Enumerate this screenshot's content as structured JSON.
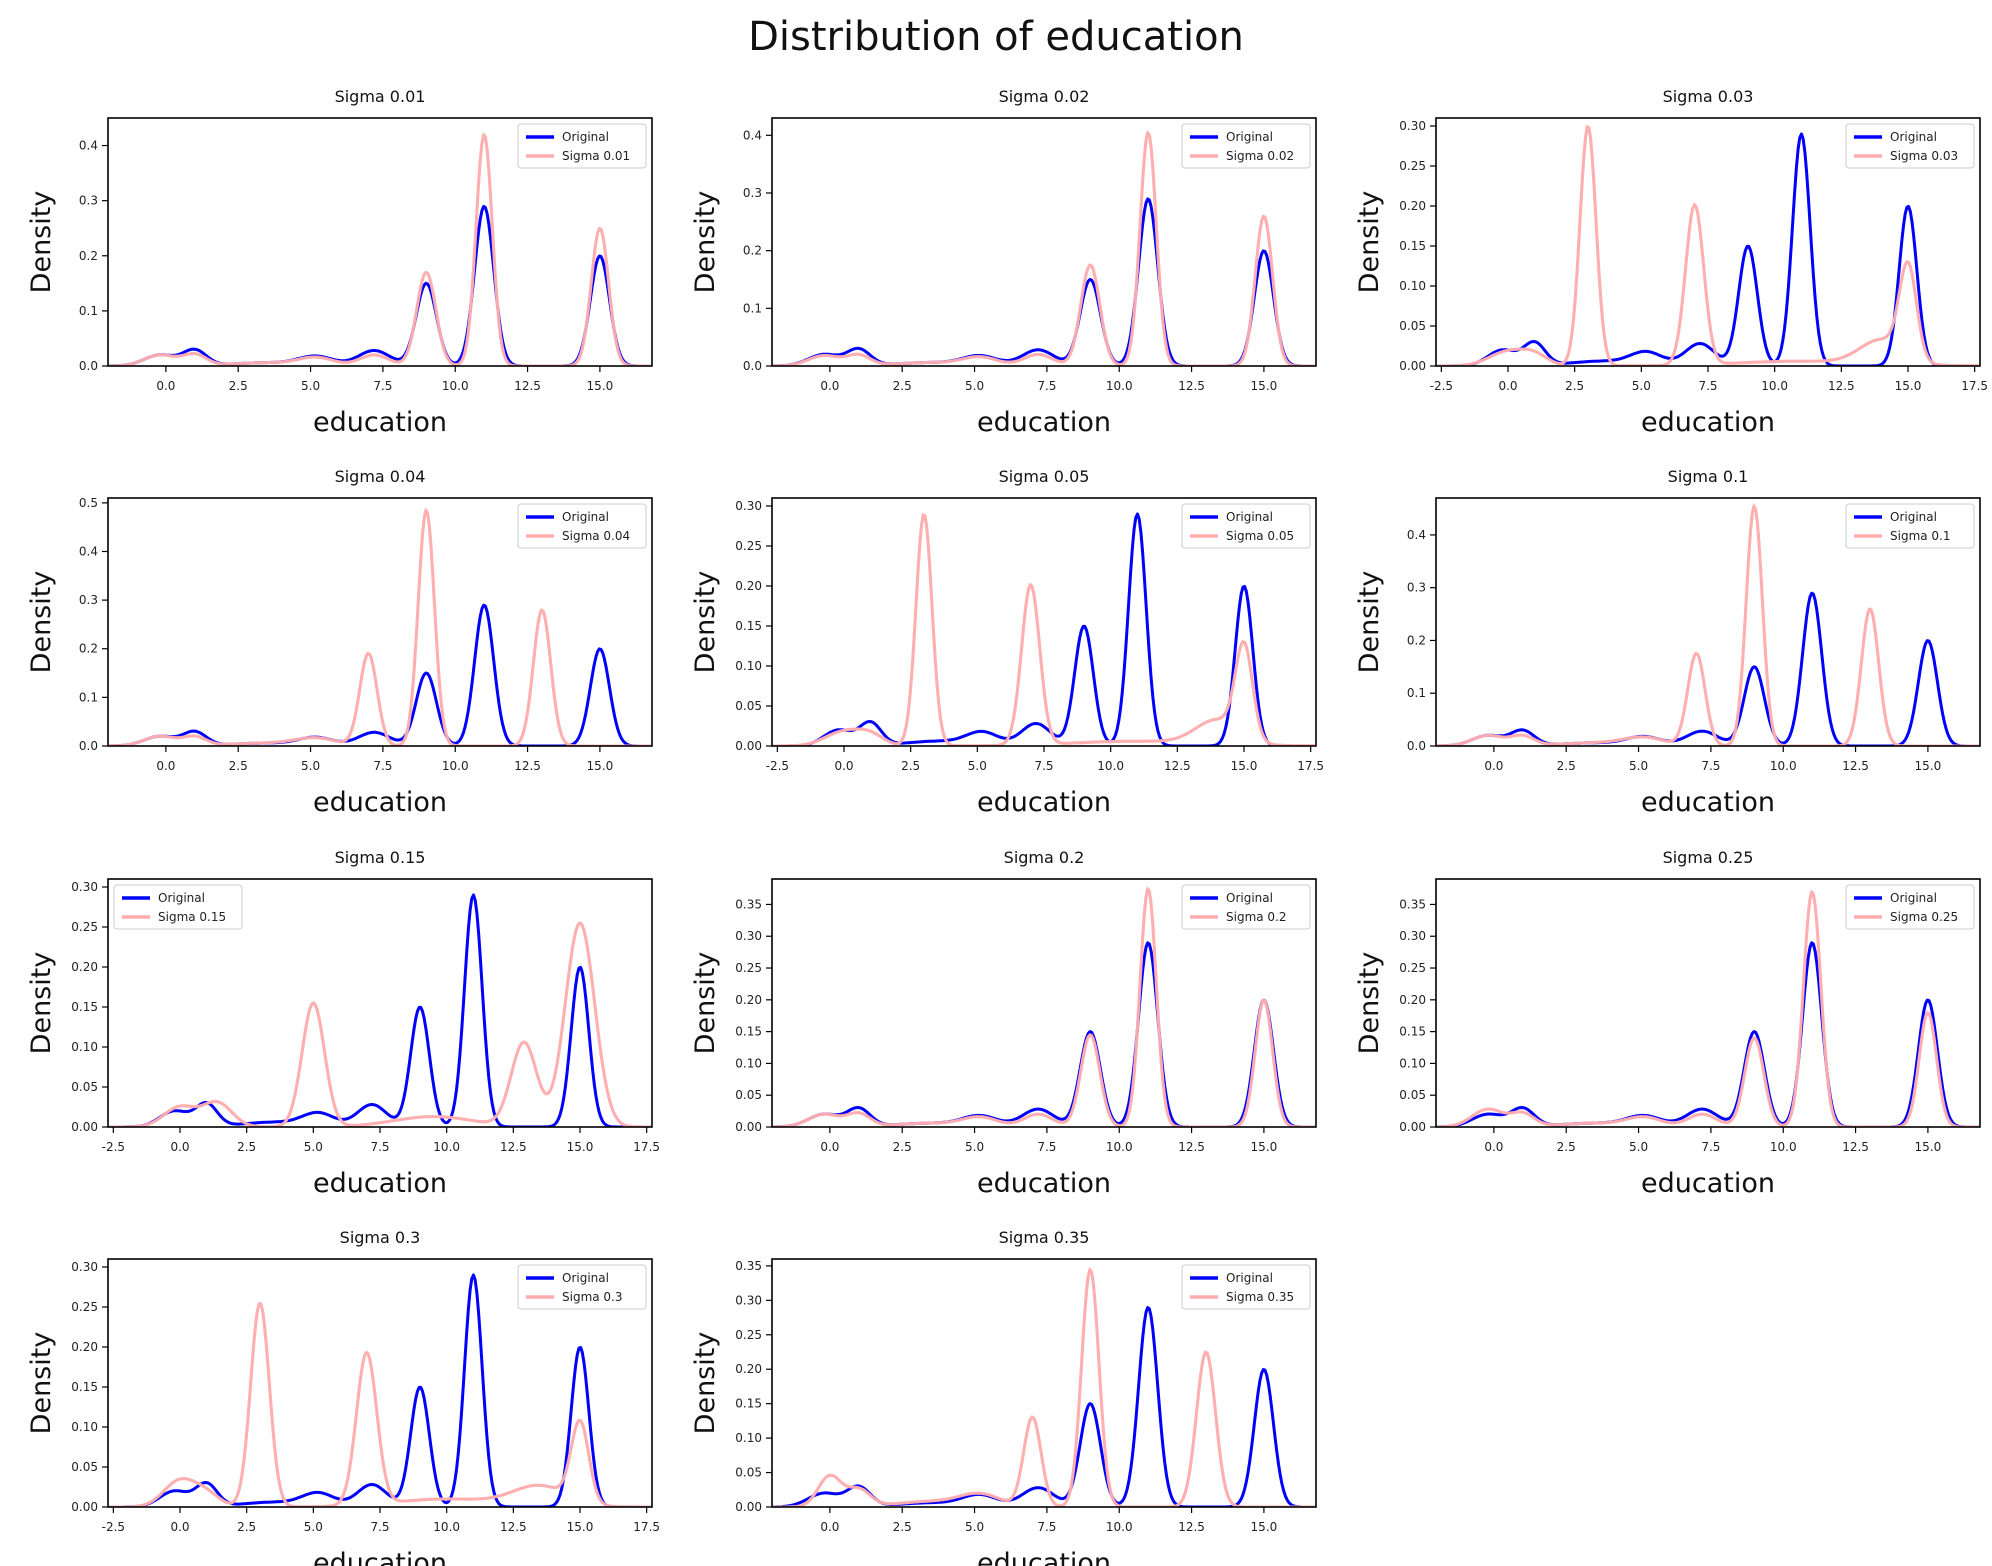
{
  "figure": {
    "title": "Distribution of education"
  },
  "chart_data": [
    {
      "type": "line",
      "title": "Sigma 0.01",
      "xlabel": "education",
      "ylabel": "Density",
      "xlim": [
        -2.0,
        16.8
      ],
      "ylim": [
        0,
        0.45
      ],
      "xticks": [
        "0.0",
        "2.5",
        "5.0",
        "7.5",
        "10.0",
        "12.5",
        "15.0"
      ],
      "yticks": [
        "0.0",
        "0.1",
        "0.2",
        "0.3",
        "0.4"
      ],
      "legend": "top-right",
      "series": [
        {
          "name": "Original",
          "color": "#0000ff",
          "profile": "original"
        },
        {
          "name": "Sigma 0.01",
          "color": "#ffadad",
          "components": [
            [
              -0.2,
              0.02,
              0.55
            ],
            [
              1.0,
              0.02,
              0.4
            ],
            [
              3.5,
              0.006,
              1.2
            ],
            [
              5.2,
              0.014,
              0.6
            ],
            [
              7.2,
              0.02,
              0.5
            ],
            [
              9.0,
              0.17,
              0.33
            ],
            [
              11.0,
              0.42,
              0.28
            ],
            [
              15.0,
              0.25,
              0.3
            ]
          ]
        }
      ]
    },
    {
      "type": "line",
      "title": "Sigma 0.02",
      "xlabel": "education",
      "ylabel": "Density",
      "xlim": [
        -2.0,
        16.8
      ],
      "ylim": [
        0,
        0.43
      ],
      "xticks": [
        "0.0",
        "2.5",
        "5.0",
        "7.5",
        "10.0",
        "12.5",
        "15.0"
      ],
      "yticks": [
        "0.0",
        "0.1",
        "0.2",
        "0.3",
        "0.4"
      ],
      "legend": "top-right",
      "series": [
        {
          "name": "Original",
          "color": "#0000ff",
          "profile": "original"
        },
        {
          "name": "Sigma 0.02",
          "color": "#ffadad",
          "components": [
            [
              -0.2,
              0.018,
              0.55
            ],
            [
              1.0,
              0.018,
              0.4
            ],
            [
              3.5,
              0.006,
              1.2
            ],
            [
              5.2,
              0.014,
              0.6
            ],
            [
              7.2,
              0.02,
              0.5
            ],
            [
              9.0,
              0.175,
              0.33
            ],
            [
              11.0,
              0.405,
              0.28
            ],
            [
              15.0,
              0.26,
              0.3
            ]
          ]
        }
      ]
    },
    {
      "type": "line",
      "title": "Sigma 0.03",
      "xlabel": "education",
      "ylabel": "Density",
      "xlim": [
        -2.7,
        17.7
      ],
      "ylim": [
        0,
        0.31
      ],
      "xticks": [
        "-2.5",
        "0.0",
        "2.5",
        "5.0",
        "7.5",
        "10.0",
        "12.5",
        "15.0",
        "17.5"
      ],
      "yticks": [
        "0.00",
        "0.05",
        "0.10",
        "0.15",
        "0.20",
        "0.25",
        "0.30"
      ],
      "legend": "top-right",
      "series": [
        {
          "name": "Original",
          "color": "#0000ff",
          "profile": "original"
        },
        {
          "name": "Sigma 0.03",
          "color": "#ffadad",
          "components": [
            [
              0.0,
              0.018,
              0.7
            ],
            [
              1.0,
              0.012,
              0.5
            ],
            [
              3.0,
              0.3,
              0.3
            ],
            [
              7.0,
              0.2,
              0.34
            ],
            [
              11.0,
              0.006,
              2.5
            ],
            [
              14.0,
              0.03,
              0.8
            ],
            [
              15.0,
              0.115,
              0.32
            ]
          ]
        }
      ]
    },
    {
      "type": "line",
      "title": "Sigma 0.04",
      "xlabel": "education",
      "ylabel": "Density",
      "xlim": [
        -2.0,
        16.8
      ],
      "ylim": [
        0,
        0.51
      ],
      "xticks": [
        "0.0",
        "2.5",
        "5.0",
        "7.5",
        "10.0",
        "12.5",
        "15.0"
      ],
      "yticks": [
        "0.0",
        "0.1",
        "0.2",
        "0.3",
        "0.4",
        "0.5"
      ],
      "legend": "top-right",
      "series": [
        {
          "name": "Original",
          "color": "#0000ff",
          "profile": "original"
        },
        {
          "name": "Sigma 0.04",
          "color": "#ffadad",
          "components": [
            [
              -0.2,
              0.02,
              0.55
            ],
            [
              1.0,
              0.018,
              0.4
            ],
            [
              3.5,
              0.006,
              1.2
            ],
            [
              5.2,
              0.015,
              0.7
            ],
            [
              7.0,
              0.19,
              0.3
            ],
            [
              9.0,
              0.485,
              0.28
            ],
            [
              13.0,
              0.28,
              0.3
            ]
          ]
        }
      ]
    },
    {
      "type": "line",
      "title": "Sigma 0.05",
      "xlabel": "education",
      "ylabel": "Density",
      "xlim": [
        -2.7,
        17.7
      ],
      "ylim": [
        0,
        0.31
      ],
      "xticks": [
        "-2.5",
        "0.0",
        "2.5",
        "5.0",
        "7.5",
        "10.0",
        "12.5",
        "15.0",
        "17.5"
      ],
      "yticks": [
        "0.00",
        "0.05",
        "0.10",
        "0.15",
        "0.20",
        "0.25",
        "0.30"
      ],
      "legend": "top-right",
      "series": [
        {
          "name": "Original",
          "color": "#0000ff",
          "profile": "original"
        },
        {
          "name": "Sigma 0.05",
          "color": "#ffadad",
          "components": [
            [
              0.0,
              0.018,
              0.7
            ],
            [
              1.0,
              0.012,
              0.5
            ],
            [
              3.0,
              0.29,
              0.3
            ],
            [
              7.0,
              0.2,
              0.34
            ],
            [
              11.0,
              0.006,
              2.5
            ],
            [
              14.0,
              0.03,
              0.8
            ],
            [
              15.0,
              0.115,
              0.32
            ]
          ]
        }
      ]
    },
    {
      "type": "line",
      "title": "Sigma 0.1",
      "xlabel": "education",
      "ylabel": "Density",
      "xlim": [
        -2.0,
        16.8
      ],
      "ylim": [
        0,
        0.47
      ],
      "xticks": [
        "0.0",
        "2.5",
        "5.0",
        "7.5",
        "10.0",
        "12.5",
        "15.0"
      ],
      "yticks": [
        "0.0",
        "0.1",
        "0.2",
        "0.3",
        "0.4"
      ],
      "legend": "top-right",
      "series": [
        {
          "name": "Original",
          "color": "#0000ff",
          "profile": "original"
        },
        {
          "name": "Sigma 0.1",
          "color": "#ffadad",
          "components": [
            [
              -0.2,
              0.02,
              0.55
            ],
            [
              1.0,
              0.018,
              0.4
            ],
            [
              3.5,
              0.006,
              1.2
            ],
            [
              5.2,
              0.015,
              0.7
            ],
            [
              7.0,
              0.175,
              0.3
            ],
            [
              9.0,
              0.455,
              0.28
            ],
            [
              13.0,
              0.26,
              0.3
            ]
          ]
        }
      ]
    },
    {
      "type": "line",
      "title": "Sigma 0.15",
      "xlabel": "education",
      "ylabel": "Density",
      "xlim": [
        -2.7,
        17.7
      ],
      "ylim": [
        0,
        0.31
      ],
      "xticks": [
        "-2.5",
        "0.0",
        "2.5",
        "5.0",
        "7.5",
        "10.0",
        "12.5",
        "15.0",
        "17.5"
      ],
      "yticks": [
        "0.00",
        "0.05",
        "0.10",
        "0.15",
        "0.20",
        "0.25",
        "0.30"
      ],
      "legend": "top-left",
      "series": [
        {
          "name": "Original",
          "color": "#0000ff",
          "profile": "original"
        },
        {
          "name": "Sigma 0.15",
          "color": "#ffadad",
          "components": [
            [
              0.0,
              0.025,
              0.6
            ],
            [
              1.4,
              0.03,
              0.55
            ],
            [
              5.0,
              0.155,
              0.42
            ],
            [
              9.5,
              0.013,
              1.5
            ],
            [
              12.9,
              0.105,
              0.48
            ],
            [
              15.0,
              0.255,
              0.55
            ]
          ]
        }
      ]
    },
    {
      "type": "line",
      "title": "Sigma 0.2",
      "xlabel": "education",
      "ylabel": "Density",
      "xlim": [
        -2.0,
        16.8
      ],
      "ylim": [
        0,
        0.39
      ],
      "xticks": [
        "0.0",
        "2.5",
        "5.0",
        "7.5",
        "10.0",
        "12.5",
        "15.0"
      ],
      "yticks": [
        "0.00",
        "0.05",
        "0.10",
        "0.15",
        "0.20",
        "0.25",
        "0.30",
        "0.35"
      ],
      "legend": "top-right",
      "series": [
        {
          "name": "Original",
          "color": "#0000ff",
          "profile": "original"
        },
        {
          "name": "Sigma 0.2",
          "color": "#ffadad",
          "components": [
            [
              -0.2,
              0.02,
              0.55
            ],
            [
              1.0,
              0.02,
              0.4
            ],
            [
              3.5,
              0.006,
              1.2
            ],
            [
              5.2,
              0.014,
              0.6
            ],
            [
              7.2,
              0.02,
              0.5
            ],
            [
              9.0,
              0.145,
              0.33
            ],
            [
              11.0,
              0.375,
              0.28
            ],
            [
              15.0,
              0.2,
              0.3
            ]
          ]
        }
      ]
    },
    {
      "type": "line",
      "title": "Sigma 0.25",
      "xlabel": "education",
      "ylabel": "Density",
      "xlim": [
        -2.0,
        16.8
      ],
      "ylim": [
        0,
        0.39
      ],
      "xticks": [
        "0.0",
        "2.5",
        "5.0",
        "7.5",
        "10.0",
        "12.5",
        "15.0"
      ],
      "yticks": [
        "0.00",
        "0.05",
        "0.10",
        "0.15",
        "0.20",
        "0.25",
        "0.30",
        "0.35"
      ],
      "legend": "top-right",
      "series": [
        {
          "name": "Original",
          "color": "#0000ff",
          "profile": "original"
        },
        {
          "name": "Sigma 0.25",
          "color": "#ffadad",
          "components": [
            [
              -0.2,
              0.028,
              0.55
            ],
            [
              1.0,
              0.02,
              0.4
            ],
            [
              3.5,
              0.006,
              1.2
            ],
            [
              5.2,
              0.014,
              0.6
            ],
            [
              7.2,
              0.02,
              0.5
            ],
            [
              9.0,
              0.14,
              0.33
            ],
            [
              11.0,
              0.37,
              0.3
            ],
            [
              15.0,
              0.18,
              0.3
            ]
          ]
        }
      ]
    },
    {
      "type": "line",
      "title": "Sigma 0.3",
      "xlabel": "education",
      "ylabel": "Density",
      "xlim": [
        -2.7,
        17.7
      ],
      "ylim": [
        0,
        0.31
      ],
      "xticks": [
        "-2.5",
        "0.0",
        "2.5",
        "5.0",
        "7.5",
        "10.0",
        "12.5",
        "15.0",
        "17.5"
      ],
      "yticks": [
        "0.00",
        "0.05",
        "0.10",
        "0.15",
        "0.20",
        "0.25",
        "0.30"
      ],
      "legend": "top-right",
      "series": [
        {
          "name": "Original",
          "color": "#0000ff",
          "profile": "original"
        },
        {
          "name": "Sigma 0.3",
          "color": "#ffadad",
          "components": [
            [
              0.0,
              0.033,
              0.6
            ],
            [
              1.0,
              0.015,
              0.5
            ],
            [
              3.0,
              0.255,
              0.35
            ],
            [
              7.0,
              0.19,
              0.38
            ],
            [
              10.0,
              0.01,
              2.0
            ],
            [
              13.5,
              0.025,
              1.0
            ],
            [
              15.0,
              0.1,
              0.33
            ]
          ]
        }
      ]
    },
    {
      "type": "line",
      "title": "Sigma 0.35",
      "xlabel": "education",
      "ylabel": "Density",
      "xlim": [
        -2.0,
        16.8
      ],
      "ylim": [
        0,
        0.36
      ],
      "xticks": [
        "0.0",
        "2.5",
        "5.0",
        "7.5",
        "10.0",
        "12.5",
        "15.0"
      ],
      "yticks": [
        "0.00",
        "0.05",
        "0.10",
        "0.15",
        "0.20",
        "0.25",
        "0.30",
        "0.35"
      ],
      "legend": "top-right",
      "series": [
        {
          "name": "Original",
          "color": "#0000ff",
          "profile": "original"
        },
        {
          "name": "Sigma 0.35",
          "color": "#ffadad",
          "components": [
            [
              0.0,
              0.045,
              0.4
            ],
            [
              1.0,
              0.025,
              0.4
            ],
            [
              3.5,
              0.008,
              1.2
            ],
            [
              5.2,
              0.017,
              0.7
            ],
            [
              7.0,
              0.13,
              0.3
            ],
            [
              9.0,
              0.345,
              0.3
            ],
            [
              13.0,
              0.225,
              0.33
            ]
          ]
        }
      ]
    }
  ],
  "original_profile": [
    [
      -0.2,
      0.02,
      0.55
    ],
    [
      1.0,
      0.028,
      0.4
    ],
    [
      3.5,
      0.006,
      1.2
    ],
    [
      5.2,
      0.016,
      0.6
    ],
    [
      7.2,
      0.028,
      0.55
    ],
    [
      9.0,
      0.15,
      0.35
    ],
    [
      11.0,
      0.29,
      0.33
    ],
    [
      15.0,
      0.2,
      0.33
    ]
  ]
}
